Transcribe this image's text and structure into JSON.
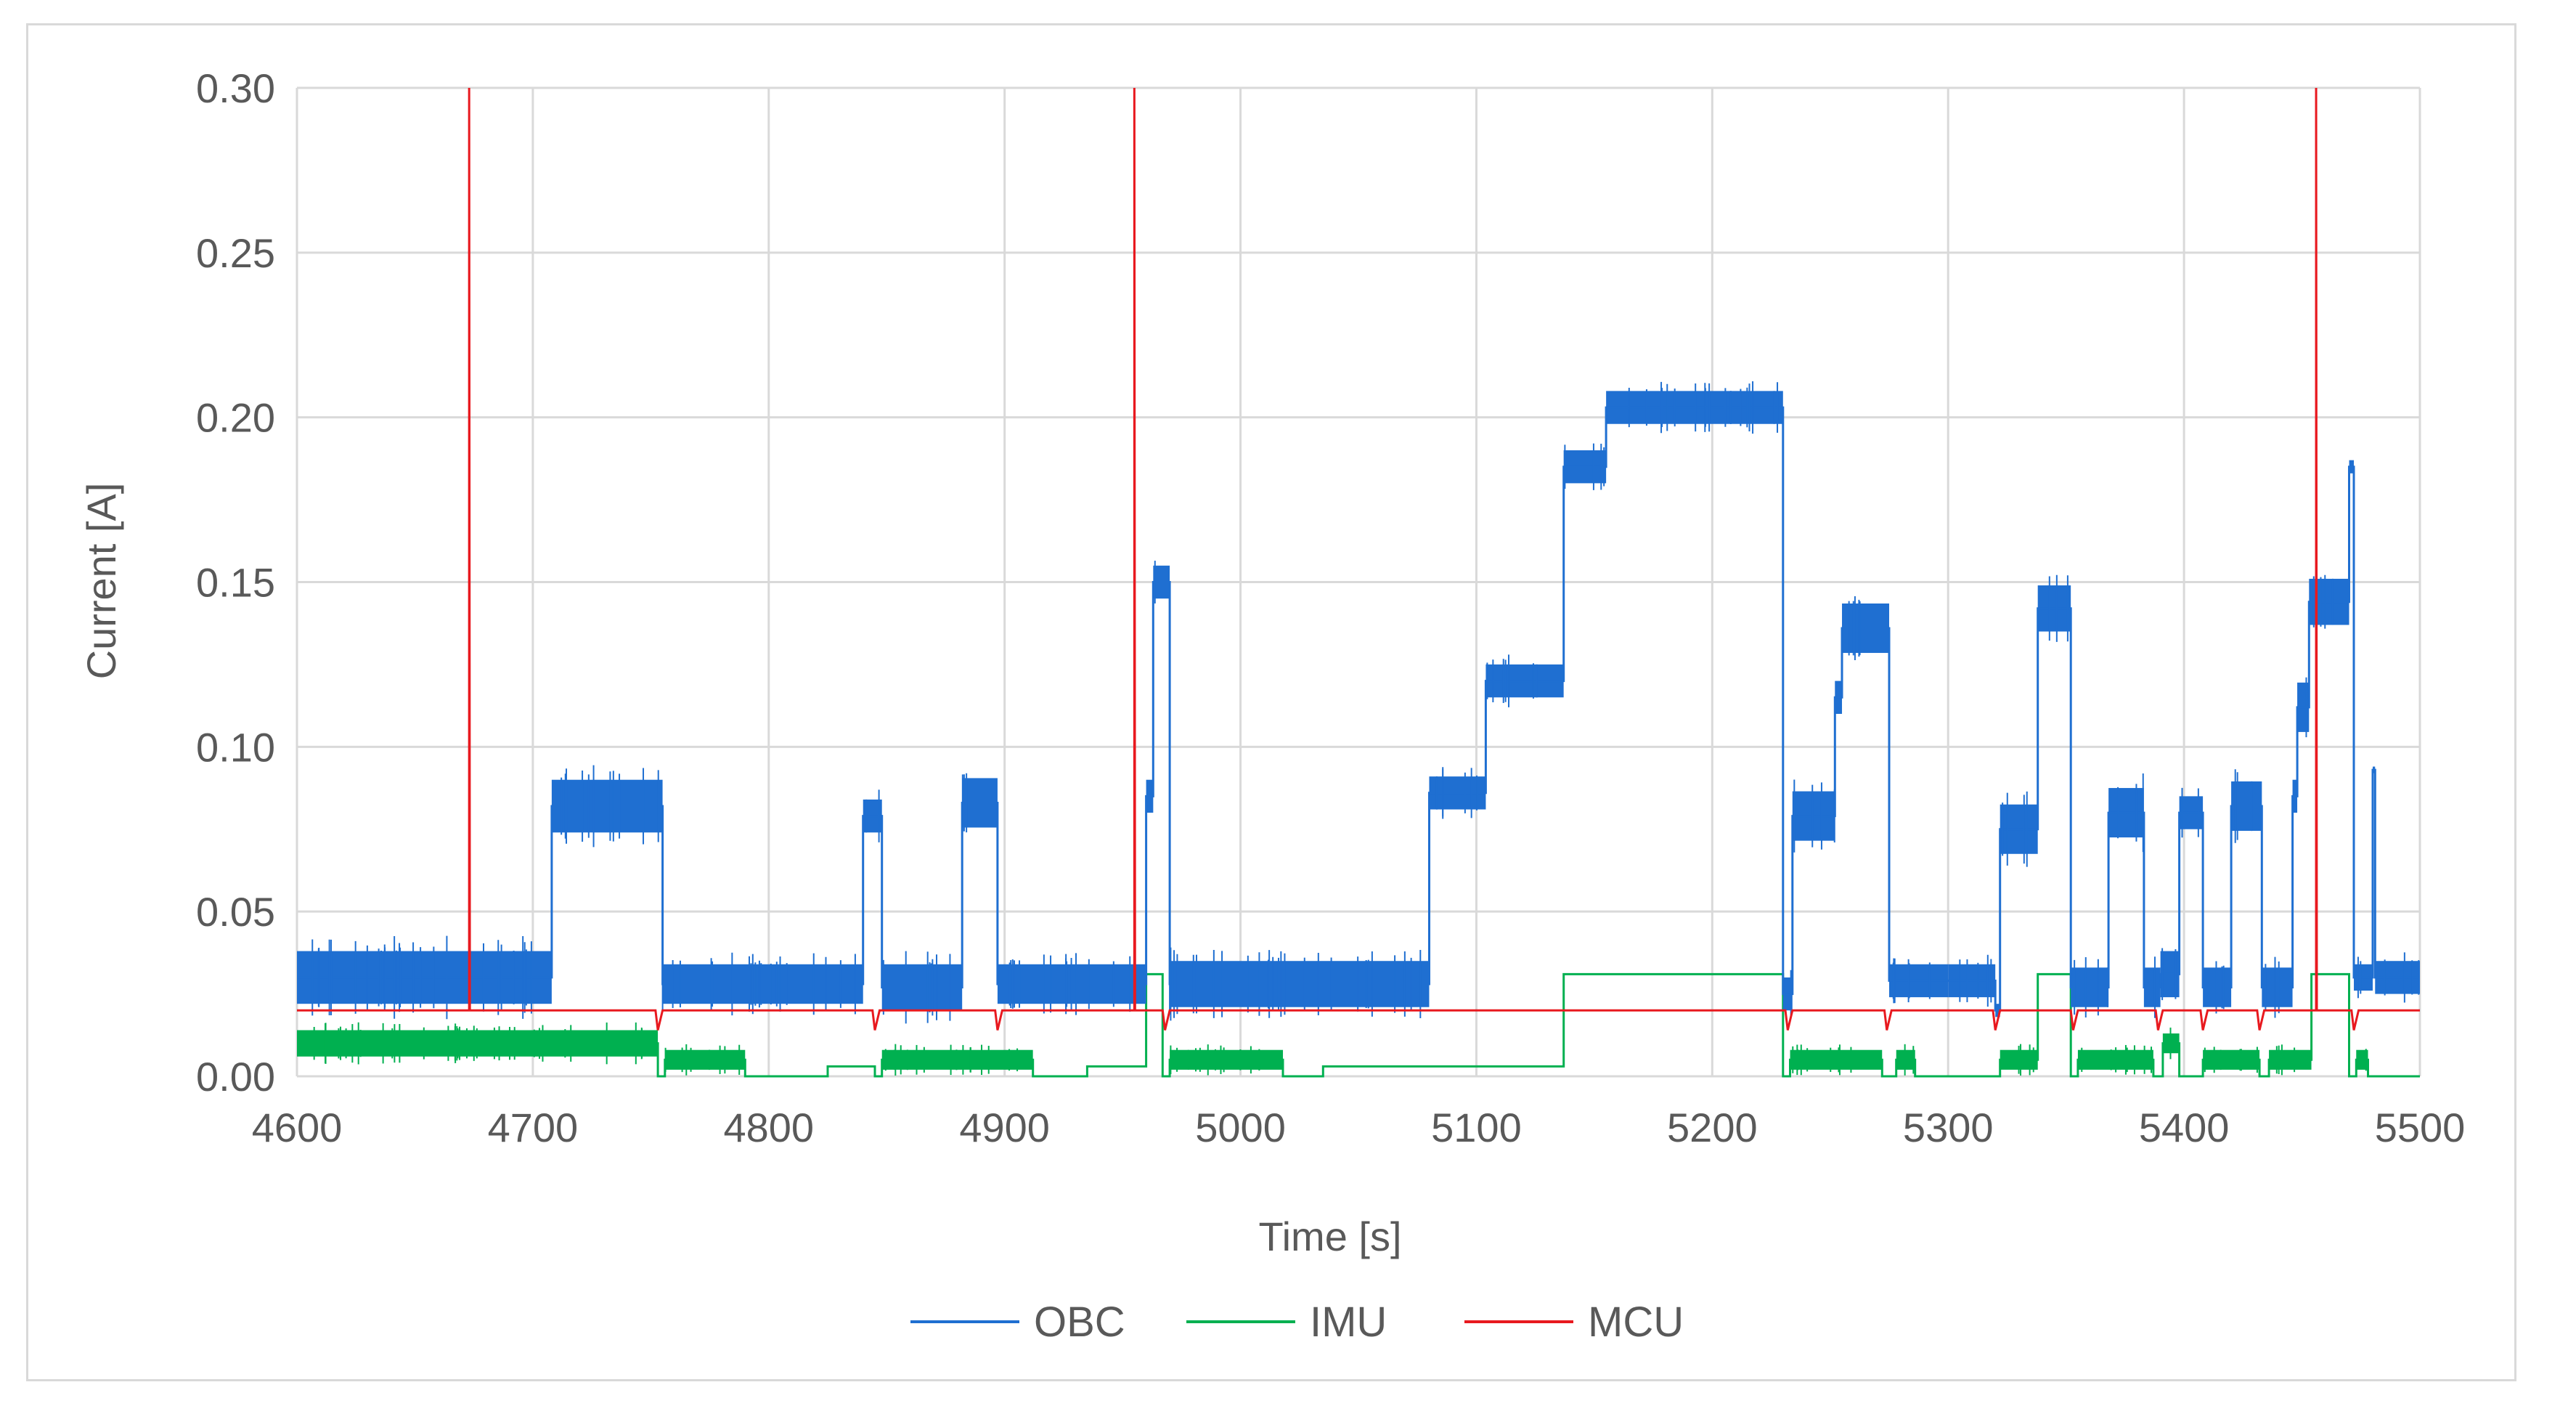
{
  "colors": {
    "grid": "#d9d9d9",
    "text": "#595959",
    "obc": "#1f6fd1",
    "imu": "#00b050",
    "mcu": "#e8191f"
  },
  "chart_data": {
    "type": "line",
    "title": "",
    "xlabel": "Time [s]",
    "ylabel": "Current [A]",
    "xlim": [
      4600,
      5500
    ],
    "ylim": [
      0,
      0.3
    ],
    "x_ticks": [
      4600,
      4700,
      4800,
      4900,
      5000,
      5100,
      5200,
      5300,
      5400,
      5500
    ],
    "x_tick_labels": [
      "4600",
      "4700",
      "4800",
      "4900",
      "5000",
      "5100",
      "5200",
      "5300",
      "5400",
      "5500"
    ],
    "y_ticks": [
      0,
      0.05,
      0.1,
      0.15,
      0.2,
      0.25,
      0.3
    ],
    "y_tick_labels": [
      "0.00",
      "0.05",
      "0.10",
      "0.15",
      "0.20",
      "0.25",
      "0.30"
    ],
    "grid": true,
    "legend_position": "bottom",
    "series": [
      {
        "name": "OBC",
        "color": "#1f6fd1",
        "segments": [
          {
            "x": [
              4600,
              4708
            ],
            "y": 0.03,
            "band": 0.016
          },
          {
            "x": [
              4708,
              4755
            ],
            "y": 0.082,
            "band": 0.016
          },
          {
            "x": [
              4755,
              4840
            ],
            "y": 0.028,
            "band": 0.012
          },
          {
            "x": [
              4840,
              4848
            ],
            "y": 0.079,
            "band": 0.01
          },
          {
            "x": [
              4848,
              4882
            ],
            "y": 0.027,
            "band": 0.014
          },
          {
            "x": [
              4882,
              4897
            ],
            "y": 0.083,
            "band": 0.015
          },
          {
            "x": [
              4897,
              4960
            ],
            "y": 0.028,
            "band": 0.012
          },
          {
            "x": [
              4960,
              4963
            ],
            "y": 0.085,
            "band": 0.01
          },
          {
            "x": [
              4963,
              4970
            ],
            "y": 0.15,
            "band": 0.01
          },
          {
            "x": [
              4970,
              5080
            ],
            "y": 0.028,
            "band": 0.014
          },
          {
            "x": [
              5080,
              5104
            ],
            "y": 0.086,
            "band": 0.01
          },
          {
            "x": [
              5104,
              5137
            ],
            "y": 0.12,
            "band": 0.01
          },
          {
            "x": [
              5137,
              5155
            ],
            "y": 0.185,
            "band": 0.01
          },
          {
            "x": [
              5155,
              5230
            ],
            "y": 0.203,
            "band": 0.01
          },
          {
            "x": [
              5230,
              5234
            ],
            "y": 0.025,
            "band": 0.01
          },
          {
            "x": [
              5234,
              5252
            ],
            "y": 0.079,
            "band": 0.015
          },
          {
            "x": [
              5252,
              5255
            ],
            "y": 0.115,
            "band": 0.01
          },
          {
            "x": [
              5255,
              5275
            ],
            "y": 0.136,
            "band": 0.015
          },
          {
            "x": [
              5275,
              5300
            ],
            "y": 0.029,
            "band": 0.01
          },
          {
            "x": [
              5300,
              5320
            ],
            "y": 0.029,
            "band": 0.01
          },
          {
            "x": [
              5320,
              5322
            ],
            "y": 0.02,
            "band": 0.004
          },
          {
            "x": [
              5322,
              5338
            ],
            "y": 0.075,
            "band": 0.015
          },
          {
            "x": [
              5338,
              5352
            ],
            "y": 0.142,
            "band": 0.014
          },
          {
            "x": [
              5352,
              5368
            ],
            "y": 0.027,
            "band": 0.012
          },
          {
            "x": [
              5368,
              5383
            ],
            "y": 0.08,
            "band": 0.015
          },
          {
            "x": [
              5383,
              5390
            ],
            "y": 0.027,
            "band": 0.012
          },
          {
            "x": [
              5390,
              5398
            ],
            "y": 0.031,
            "band": 0.014
          },
          {
            "x": [
              5398,
              5408
            ],
            "y": 0.08,
            "band": 0.01
          },
          {
            "x": [
              5408,
              5420
            ],
            "y": 0.027,
            "band": 0.012
          },
          {
            "x": [
              5420,
              5433
            ],
            "y": 0.082,
            "band": 0.015
          },
          {
            "x": [
              5433,
              5446
            ],
            "y": 0.027,
            "band": 0.012
          },
          {
            "x": [
              5446,
              5448
            ],
            "y": 0.085,
            "band": 0.01
          },
          {
            "x": [
              5448,
              5453
            ],
            "y": 0.112,
            "band": 0.015
          },
          {
            "x": [
              5453,
              5470
            ],
            "y": 0.144,
            "band": 0.014
          },
          {
            "x": [
              5470,
              5472
            ],
            "y": 0.185,
            "band": 0.004
          },
          {
            "x": [
              5472,
              5480
            ],
            "y": 0.03,
            "band": 0.008
          },
          {
            "x": [
              5480,
              5481
            ],
            "y": 0.093,
            "band": 0.002
          },
          {
            "x": [
              5481,
              5500
            ],
            "y": 0.03,
            "band": 0.01
          }
        ]
      },
      {
        "name": "IMU",
        "color": "#00b050",
        "segments": [
          {
            "x": [
              4600,
              4753
            ],
            "y": 0.01,
            "band": 0.008
          },
          {
            "x": [
              4753,
              4756
            ],
            "y": 0.0,
            "band": 0.0
          },
          {
            "x": [
              4756,
              4790
            ],
            "y": 0.005,
            "band": 0.006
          },
          {
            "x": [
              4790,
              4825
            ],
            "y": 0.0,
            "band": 0.0
          },
          {
            "x": [
              4825,
              4845
            ],
            "y": 0.003,
            "band": 0.0
          },
          {
            "x": [
              4845,
              4848
            ],
            "y": 0.0,
            "band": 0.0
          },
          {
            "x": [
              4848,
              4912
            ],
            "y": 0.005,
            "band": 0.006
          },
          {
            "x": [
              4912,
              4935
            ],
            "y": 0.0,
            "band": 0.0
          },
          {
            "x": [
              4935,
              4960
            ],
            "y": 0.003,
            "band": 0.0
          },
          {
            "x": [
              4960,
              4967
            ],
            "y": 0.031,
            "band": 0.0
          },
          {
            "x": [
              4967,
              4970
            ],
            "y": 0.0,
            "band": 0.0
          },
          {
            "x": [
              4970,
              5018
            ],
            "y": 0.005,
            "band": 0.006
          },
          {
            "x": [
              5018,
              5035
            ],
            "y": 0.0,
            "band": 0.0
          },
          {
            "x": [
              5035,
              5137
            ],
            "y": 0.003,
            "band": 0.0
          },
          {
            "x": [
              5137,
              5230
            ],
            "y": 0.031,
            "band": 0.0
          },
          {
            "x": [
              5230,
              5233
            ],
            "y": 0.0,
            "band": 0.0
          },
          {
            "x": [
              5233,
              5272
            ],
            "y": 0.005,
            "band": 0.006
          },
          {
            "x": [
              5272,
              5278
            ],
            "y": 0.0,
            "band": 0.0
          },
          {
            "x": [
              5278,
              5286
            ],
            "y": 0.005,
            "band": 0.006
          },
          {
            "x": [
              5286,
              5322
            ],
            "y": 0.0,
            "band": 0.0
          },
          {
            "x": [
              5322,
              5338
            ],
            "y": 0.005,
            "band": 0.006
          },
          {
            "x": [
              5338,
              5352
            ],
            "y": 0.031,
            "band": 0.0
          },
          {
            "x": [
              5352,
              5355
            ],
            "y": 0.0,
            "band": 0.0
          },
          {
            "x": [
              5355,
              5387
            ],
            "y": 0.005,
            "band": 0.006
          },
          {
            "x": [
              5387,
              5391
            ],
            "y": 0.0,
            "band": 0.0
          },
          {
            "x": [
              5391,
              5398
            ],
            "y": 0.01,
            "band": 0.006
          },
          {
            "x": [
              5398,
              5408
            ],
            "y": 0.0,
            "band": 0.0
          },
          {
            "x": [
              5408,
              5432
            ],
            "y": 0.005,
            "band": 0.006
          },
          {
            "x": [
              5432,
              5436
            ],
            "y": 0.0,
            "band": 0.0
          },
          {
            "x": [
              5436,
              5454
            ],
            "y": 0.005,
            "band": 0.006
          },
          {
            "x": [
              5454,
              5470
            ],
            "y": 0.031,
            "band": 0.0
          },
          {
            "x": [
              5470,
              5473
            ],
            "y": 0.0,
            "band": 0.0
          },
          {
            "x": [
              5473,
              5478
            ],
            "y": 0.005,
            "band": 0.006
          },
          {
            "x": [
              5478,
              5500
            ],
            "y": 0.0,
            "band": 0.0
          }
        ]
      },
      {
        "name": "MCU",
        "color": "#e8191f",
        "baseline": 0.02,
        "spikes": [
          4673,
          4955,
          5456
        ],
        "spike_value": 0.3,
        "dips": [
          4753,
          4845,
          4897,
          4968,
          5232,
          5274,
          5320,
          5353,
          5389,
          5408,
          5432,
          5472
        ]
      }
    ]
  }
}
